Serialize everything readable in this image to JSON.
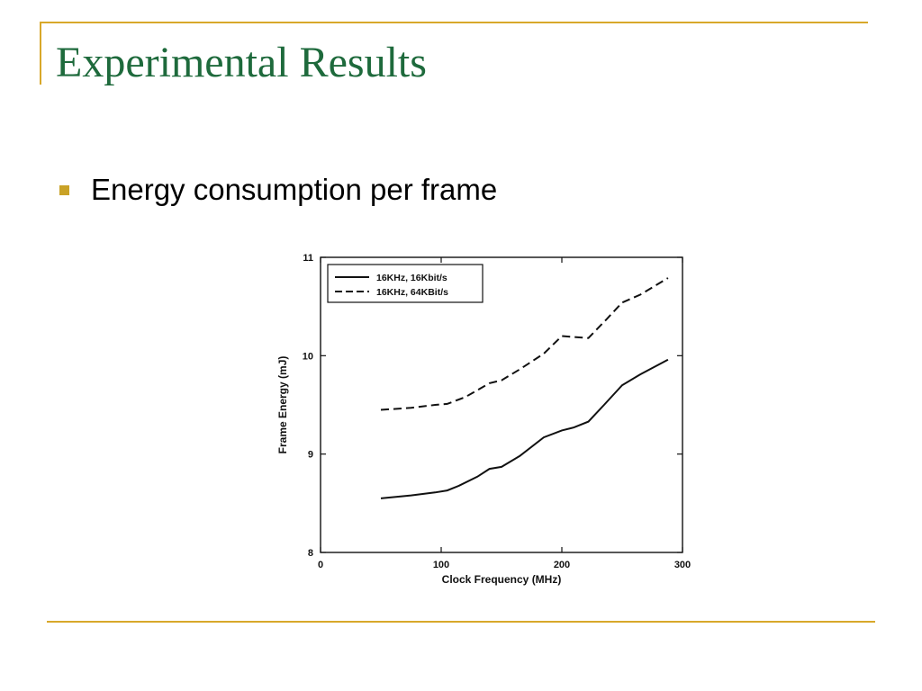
{
  "slide": {
    "title": "Experimental Results",
    "bullet": "Energy consumption per frame"
  },
  "colors": {
    "title": "#1e6a3c",
    "accent_rule": "#d8a82a",
    "bullet": "#c9a227"
  },
  "chart_data": {
    "type": "line",
    "title": "",
    "xlabel": "Clock Frequency (MHz)",
    "ylabel": "Frame Energy (mJ)",
    "xlim": [
      0,
      300
    ],
    "ylim": [
      8,
      11
    ],
    "xticks": [
      0,
      100,
      200,
      300
    ],
    "yticks": [
      8,
      9,
      10,
      11
    ],
    "grid": false,
    "legend_position": "top-left",
    "series": [
      {
        "name": "16KHz, 16Kbit/s",
        "style": "solid",
        "points": [
          [
            50,
            8.55
          ],
          [
            75,
            8.58
          ],
          [
            95,
            8.61
          ],
          [
            105,
            8.63
          ],
          [
            115,
            8.68
          ],
          [
            130,
            8.77
          ],
          [
            140,
            8.85
          ],
          [
            150,
            8.87
          ],
          [
            165,
            8.98
          ],
          [
            185,
            9.17
          ],
          [
            200,
            9.24
          ],
          [
            210,
            9.27
          ],
          [
            222,
            9.33
          ],
          [
            235,
            9.5
          ],
          [
            250,
            9.7
          ],
          [
            265,
            9.81
          ],
          [
            288,
            9.96
          ]
        ]
      },
      {
        "name": "16KHz, 64KBit/s",
        "style": "dashed",
        "points": [
          [
            50,
            9.45
          ],
          [
            75,
            9.47
          ],
          [
            95,
            9.5
          ],
          [
            105,
            9.51
          ],
          [
            120,
            9.58
          ],
          [
            140,
            9.72
          ],
          [
            150,
            9.75
          ],
          [
            165,
            9.86
          ],
          [
            185,
            10.02
          ],
          [
            200,
            10.2
          ],
          [
            210,
            10.19
          ],
          [
            222,
            10.18
          ],
          [
            237,
            10.37
          ],
          [
            250,
            10.54
          ],
          [
            265,
            10.62
          ],
          [
            288,
            10.79
          ]
        ]
      }
    ]
  }
}
